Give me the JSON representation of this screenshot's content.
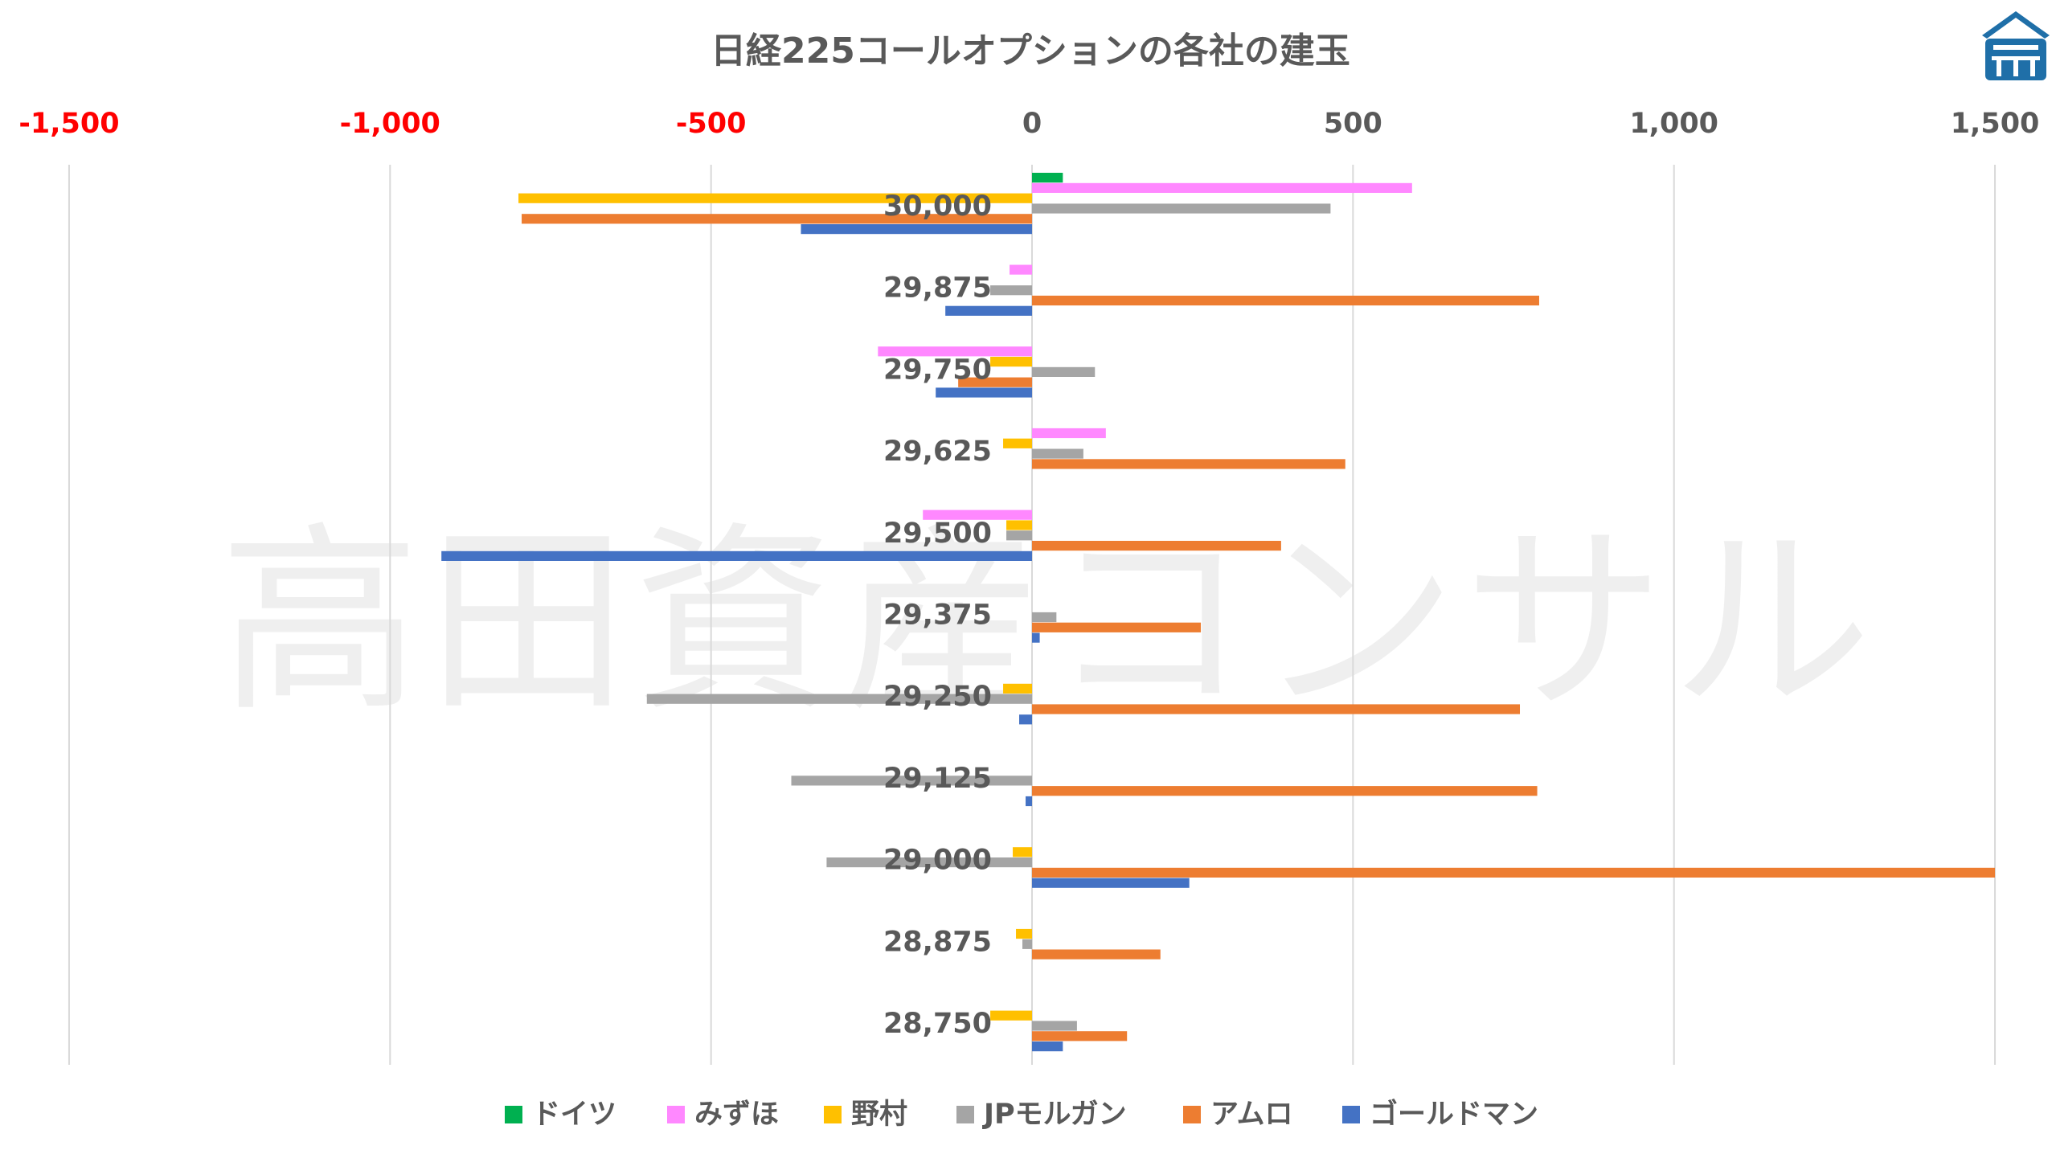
{
  "chart_data": {
    "type": "bar",
    "orientation": "horizontal",
    "title": "日経225コールオプションの各社の建玉",
    "watermark": "高田資産コンサル",
    "xlim": [
      -1500,
      1500
    ],
    "x_ticks": [
      {
        "value": -1500,
        "label": "-1,500"
      },
      {
        "value": -1000,
        "label": "-1,000"
      },
      {
        "value": -500,
        "label": "-500"
      },
      {
        "value": 0,
        "label": "0"
      },
      {
        "value": 500,
        "label": "500"
      },
      {
        "value": 1000,
        "label": "1,000"
      },
      {
        "value": 1500,
        "label": "1,500"
      }
    ],
    "negative_tick_color": "#ff0000",
    "positive_tick_color": "#595959",
    "grid": true,
    "legend_position": "bottom",
    "categories": [
      "30,000",
      "29,875",
      "29,750",
      "29,625",
      "29,500",
      "29,375",
      "29,250",
      "29,125",
      "29,000",
      "28,875",
      "28,750"
    ],
    "series": [
      {
        "name": "ドイツ",
        "color": "#00b050",
        "values": [
          48,
          0,
          0,
          0,
          0,
          0,
          0,
          0,
          0,
          0,
          0
        ]
      },
      {
        "name": "みずほ",
        "color": "#ff88ff",
        "values": [
          592,
          -35,
          -240,
          115,
          -170,
          0,
          0,
          0,
          0,
          0,
          0
        ]
      },
      {
        "name": "野村",
        "color": "#ffc000",
        "values": [
          -800,
          0,
          -65,
          -45,
          -40,
          0,
          -45,
          0,
          -30,
          -25,
          -65
        ]
      },
      {
        "name": "JPモルガン",
        "color": "#a5a5a5",
        "values": [
          465,
          -65,
          98,
          80,
          -40,
          38,
          -600,
          -375,
          -320,
          -15,
          70
        ]
      },
      {
        "name": "アムロ",
        "color": "#ed7d31",
        "values": [
          -795,
          790,
          -115,
          488,
          388,
          263,
          760,
          787,
          1500,
          200,
          148
        ]
      },
      {
        "name": "ゴールドマン",
        "color": "#4472c4",
        "values": [
          -360,
          -135,
          -150,
          0,
          -920,
          12,
          -20,
          -10,
          245,
          0,
          48
        ]
      }
    ]
  },
  "logo": {
    "name": "company-logo",
    "color": "#1f6fa8"
  }
}
